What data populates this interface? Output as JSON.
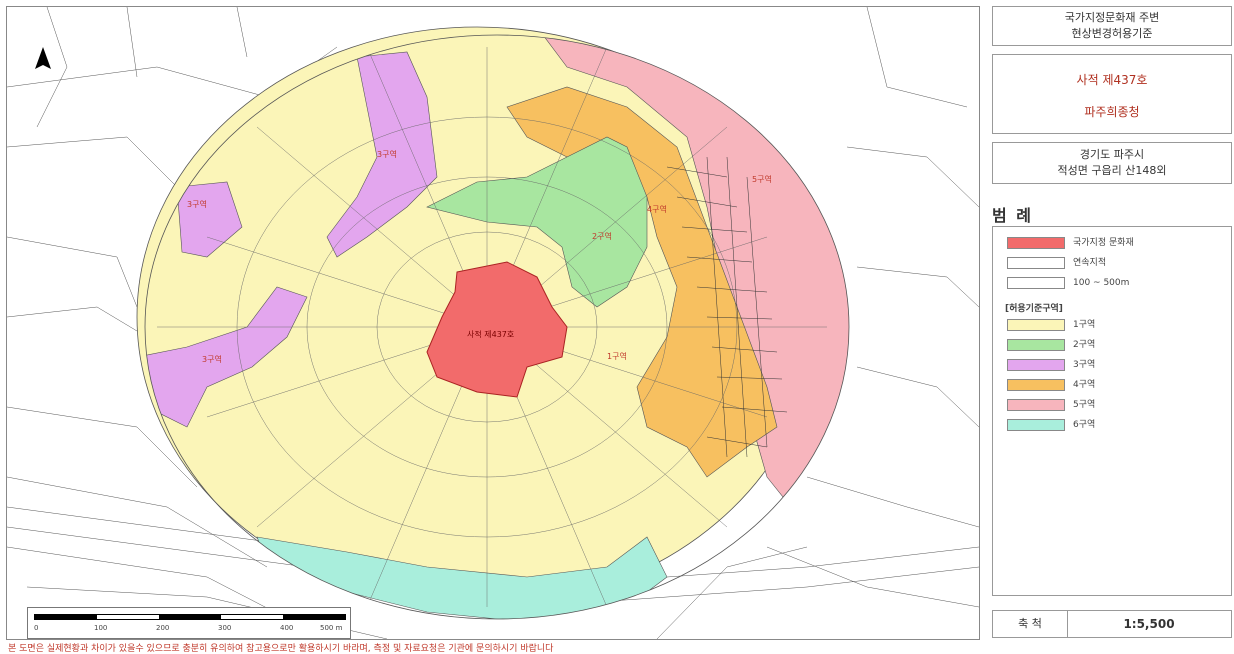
{
  "title_box": {
    "line1": "국가지정문화재 주변",
    "line2": "현상변경허용기준"
  },
  "heritage": {
    "designation": "사적 제437호",
    "name": "파주희종청"
  },
  "address": {
    "line1": "경기도 파주시",
    "line2": "적성면 구읍리 산148외"
  },
  "legend": {
    "title": "범 례",
    "items": [
      {
        "label": "국가지정 문화재",
        "color": "#f26b6b"
      },
      {
        "label": "연속지적",
        "color": "#ffffff"
      },
      {
        "label": "100 ~ 500m",
        "color": "#ffffff"
      }
    ],
    "zones_heading": "[허용기준구역]",
    "zones": [
      {
        "label": "1구역",
        "color": "#fbf5b8"
      },
      {
        "label": "2구역",
        "color": "#a8e6a0"
      },
      {
        "label": "3구역",
        "color": "#e3a6ee"
      },
      {
        "label": "4구역",
        "color": "#f7c060"
      },
      {
        "label": "5구역",
        "color": "#f7b5bd"
      },
      {
        "label": "6구역",
        "color": "#a9eedc"
      }
    ]
  },
  "scale": {
    "label": "축 척",
    "value": "1:5,500"
  },
  "scalebar": {
    "ticks": [
      "0",
      "100",
      "200",
      "300",
      "400",
      "500 m"
    ]
  },
  "map_labels": {
    "heritage_site": "사적 제437호",
    "zone2": "2구역",
    "zone3a": "3구역",
    "zone3b": "3구역",
    "zone3c": "3구역",
    "zone4": "4구역",
    "zone5": "5구역",
    "zone1": "1구역"
  },
  "footer": "본 도면은 실제현황과 차이가 있을수 있으므로 충분히 유의하여 참고용으로만 활용하시기 바라며, 측정 및 자료요청은 기관에 문의하시기 바랍니다"
}
